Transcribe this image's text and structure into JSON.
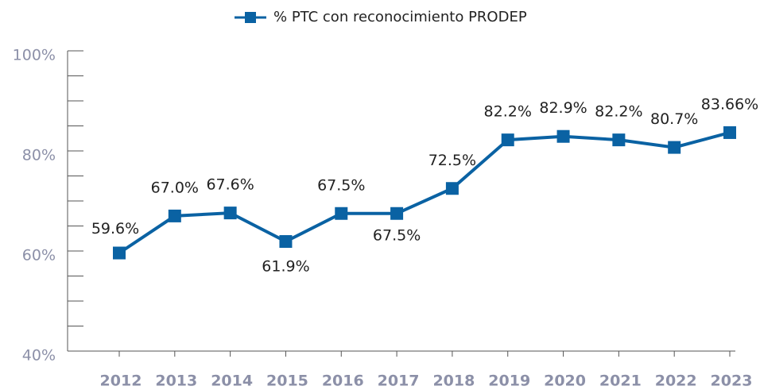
{
  "chart_data": {
    "type": "line",
    "categories": [
      "2012",
      "2013",
      "2014",
      "2015",
      "2016",
      "2017",
      "2018",
      "2019",
      "2020",
      "2021",
      "2022",
      "2023"
    ],
    "series": [
      {
        "name": "% PTC con reconocimiento PRODEP",
        "color": "#0a62a3",
        "values": [
          59.6,
          67.0,
          67.6,
          61.9,
          67.5,
          67.5,
          72.5,
          82.2,
          82.9,
          82.2,
          80.7,
          83.66
        ],
        "value_labels": [
          "59.6%",
          "67.0%",
          "67.6%",
          "61.9%",
          "67.5%",
          "67.5%",
          "72.5%",
          "82.2%",
          "82.9%",
          "82.2%",
          "80.7%",
          "83.66%"
        ]
      }
    ],
    "ylim": [
      40,
      100
    ],
    "yticks": [
      {
        "value": 40,
        "label": "40%"
      },
      {
        "value": 60,
        "label": "60%"
      },
      {
        "value": 80,
        "label": "80%"
      },
      {
        "value": 100,
        "label": "100%"
      }
    ],
    "yminorticks": [
      45,
      50,
      55,
      65,
      70,
      75,
      85,
      90,
      95
    ],
    "legend": "top"
  }
}
